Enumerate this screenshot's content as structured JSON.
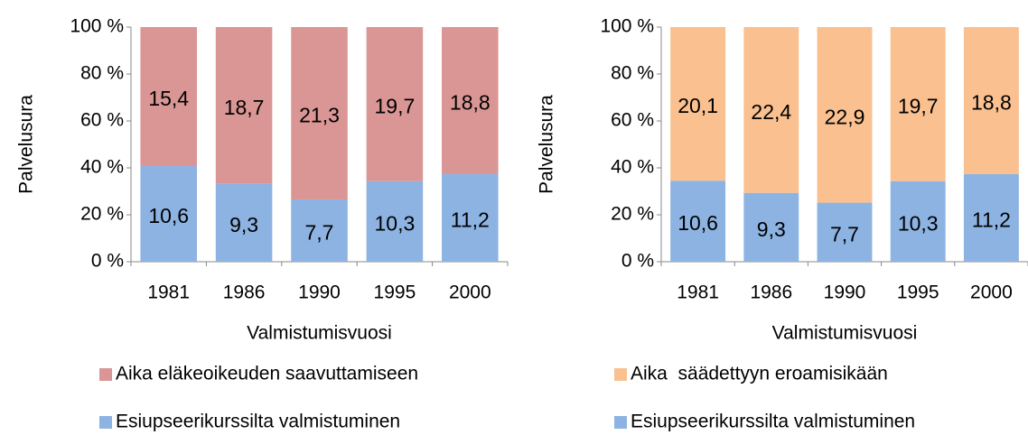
{
  "chart_data": [
    {
      "type": "bar",
      "stacked": true,
      "percent_stacked": true,
      "ylabel": "Palvelusura",
      "xlabel": "Valmistumisvuosi",
      "categories": [
        "1981",
        "1986",
        "1990",
        "1995",
        "2000"
      ],
      "ylim": [
        0,
        100
      ],
      "yticks": [
        {
          "value": 0,
          "label": "0 %"
        },
        {
          "value": 20,
          "label": "20 %"
        },
        {
          "value": 40,
          "label": "40 %"
        },
        {
          "value": 60,
          "label": "60 %"
        },
        {
          "value": 80,
          "label": "80 %"
        },
        {
          "value": 100,
          "label": "100 %"
        }
      ],
      "series": [
        {
          "name": "Esiupseerikurssilta valmistuminen",
          "color": "#8db3e2",
          "values": [
            10.6,
            9.3,
            7.7,
            10.3,
            11.2
          ],
          "value_labels": [
            "10,6",
            "9,3",
            "7,7",
            "10,3",
            "11,2"
          ]
        },
        {
          "name": "Aika eläkeoikeuden saavuttamiseen",
          "color": "#d99694",
          "values": [
            15.4,
            18.7,
            21.3,
            19.7,
            18.8
          ],
          "value_labels": [
            "15,4",
            "18,7",
            "21,3",
            "19,7",
            "18,8"
          ]
        }
      ]
    },
    {
      "type": "bar",
      "stacked": true,
      "percent_stacked": true,
      "ylabel": "Palvelusura",
      "xlabel": "Valmistumisvuosi",
      "categories": [
        "1981",
        "1986",
        "1990",
        "1995",
        "2000"
      ],
      "ylim": [
        0,
        100
      ],
      "yticks": [
        {
          "value": 0,
          "label": "0 %"
        },
        {
          "value": 20,
          "label": "20 %"
        },
        {
          "value": 40,
          "label": "40 %"
        },
        {
          "value": 60,
          "label": "60 %"
        },
        {
          "value": 80,
          "label": "80 %"
        },
        {
          "value": 100,
          "label": "100 %"
        }
      ],
      "series": [
        {
          "name": "Esiupseerikurssilta valmistuminen",
          "color": "#8db3e2",
          "values": [
            10.6,
            9.3,
            7.7,
            10.3,
            11.2
          ],
          "value_labels": [
            "10,6",
            "9,3",
            "7,7",
            "10,3",
            "11,2"
          ]
        },
        {
          "name": "Aika  säädettyyn eroamisikään",
          "color": "#fac090",
          "values": [
            20.1,
            22.4,
            22.9,
            19.7,
            18.8
          ],
          "value_labels": [
            "20,1",
            "22,4",
            "22,9",
            "19,7",
            "18,8"
          ]
        }
      ]
    }
  ]
}
